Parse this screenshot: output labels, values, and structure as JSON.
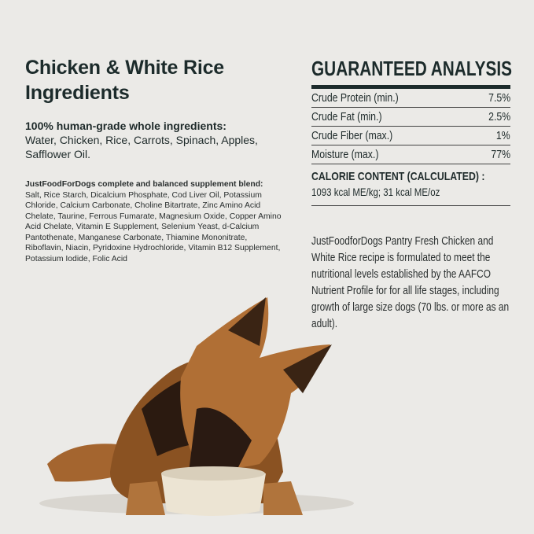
{
  "left": {
    "title_line1": "Chicken & White Rice",
    "title_line2": "Ingredients",
    "intro_heading": "100% human-grade whole ingredients:",
    "intro_text": "Water, Chicken, Rice, Carrots, Spinach, Apples, Safflower Oil.",
    "blend_heading": "JustFoodForDogs complete and balanced supplement blend:",
    "blend_text": "Salt, Rice Starch, Dicalcium Phosphate, Cod Liver Oil, Potassium Chloride, Calcium Carbonate, Choline Bitartrate, Zinc Amino Acid Chelate, Taurine, Ferrous Fumarate, Magnesium Oxide, Copper Amino Acid Chelate, Vitamin E Supplement, Selenium Yeast, d-Calcium Pantothenate, Manganese Carbonate, Thiamine Mononitrate, Riboflavin, Niacin, Pyridoxine Hydrochloride, Vitamin B12 Supplement, Potassium Iodide, Folic Acid"
  },
  "analysis": {
    "heading": "GUARANTEED ANALYSIS",
    "rows": [
      {
        "label": "Crude Protein (min.)",
        "value": "7.5%"
      },
      {
        "label": "Crude Fat (min.)",
        "value": "2.5%"
      },
      {
        "label": "Crude Fiber (max.)",
        "value": "1%"
      },
      {
        "label": "Moisture (max.)",
        "value": "77%"
      }
    ],
    "calorie_heading": "CALORIE CONTENT (CALCULATED) :",
    "calorie_value": "1093 kcal ME/kg; 31 kcal ME/oz",
    "statement": "JustFoodforDogs Pantry Fresh  Chicken and White Rice recipe is formulated to meet the nutritional levels established by the AAFCO Nutrient Profile for for all life stages, including growth of large size dogs (70 lbs. or more as an adult)."
  },
  "colors": {
    "background": "#ebeae7",
    "text": "#1c2b2b"
  }
}
